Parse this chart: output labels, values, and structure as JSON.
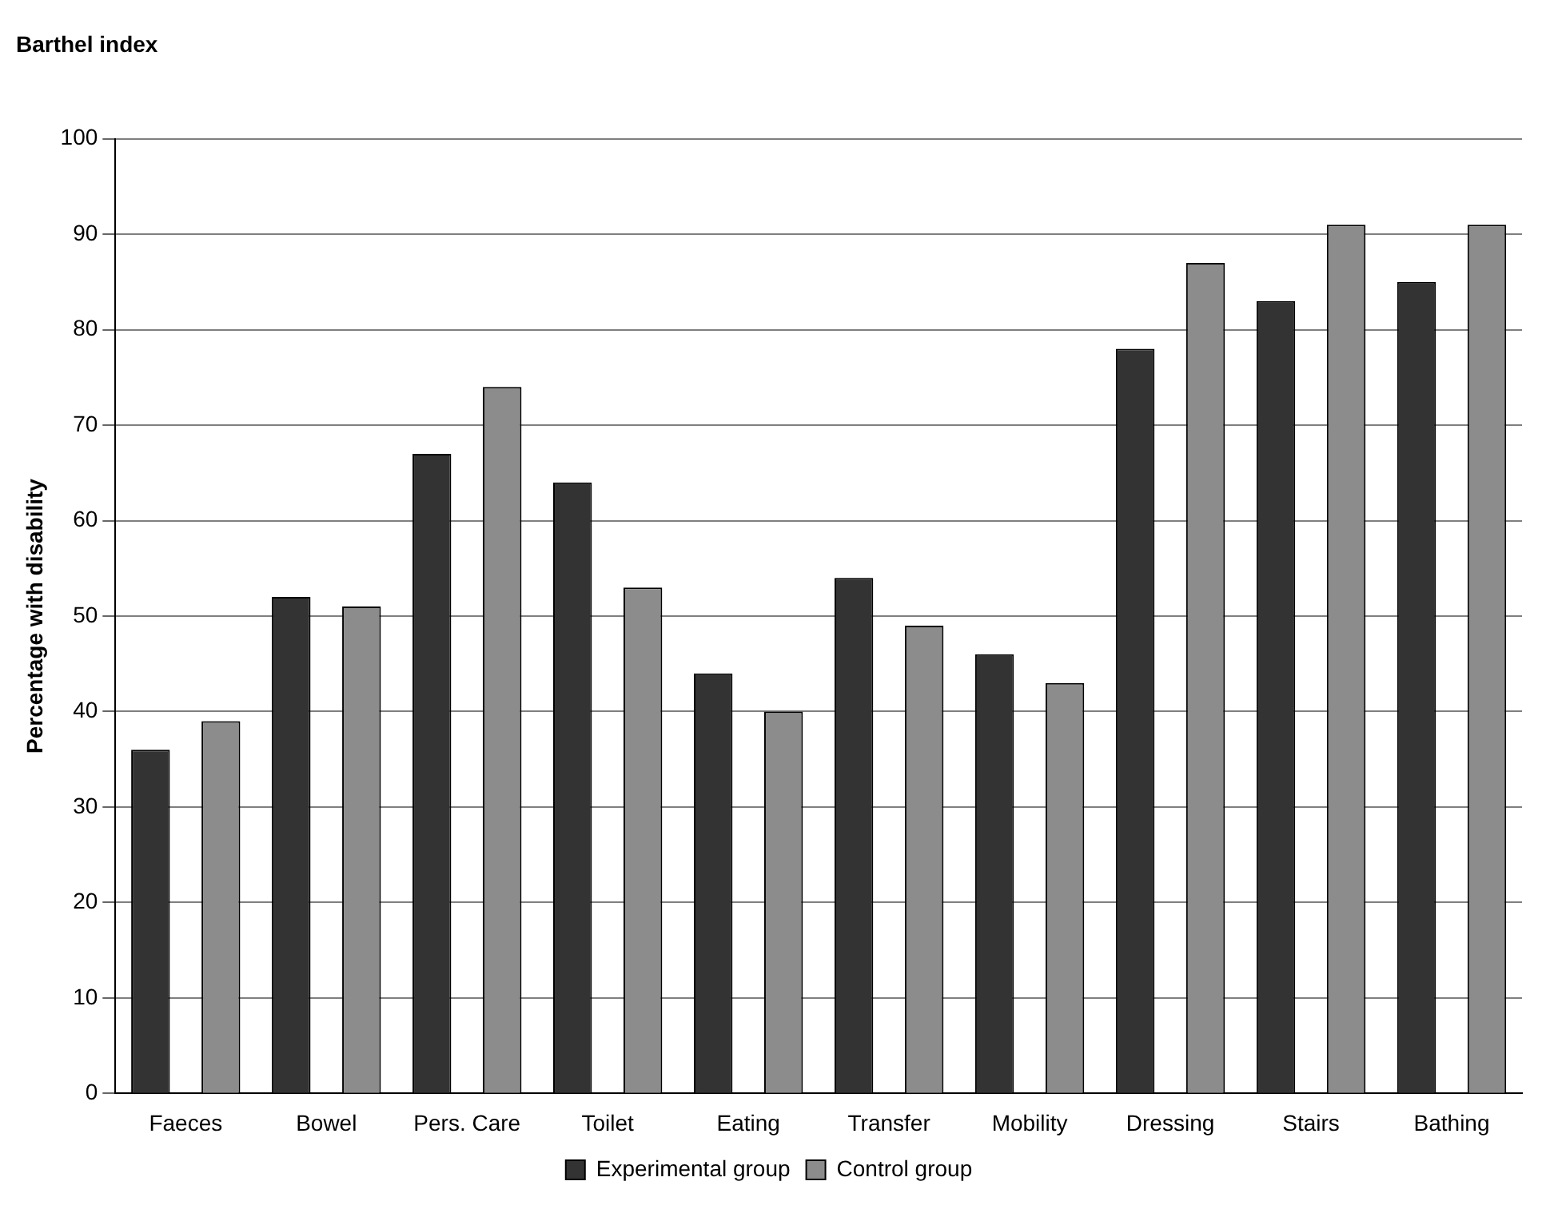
{
  "chart_data": {
    "type": "bar",
    "title": "Barthel index",
    "ylabel": "Percentage with disability",
    "categories": [
      "Faeces",
      "Bowel",
      "Pers. Care",
      "Toilet",
      "Eating",
      "Transfer",
      "Mobility",
      "Dressing",
      "Stairs",
      "Bathing"
    ],
    "series": [
      {
        "name": "Experimental group",
        "color": "#333333",
        "values": [
          36,
          52,
          67,
          64,
          44,
          54,
          46,
          78,
          83,
          85
        ]
      },
      {
        "name": "Control group",
        "color": "#8c8c8c",
        "values": [
          39,
          51,
          74,
          53,
          40,
          49,
          43,
          87,
          91,
          91
        ]
      }
    ],
    "ylim": [
      0,
      100
    ],
    "yticks": [
      0,
      10,
      20,
      30,
      40,
      50,
      60,
      70,
      80,
      90,
      100
    ],
    "grid": "y",
    "legend": "bottom"
  }
}
